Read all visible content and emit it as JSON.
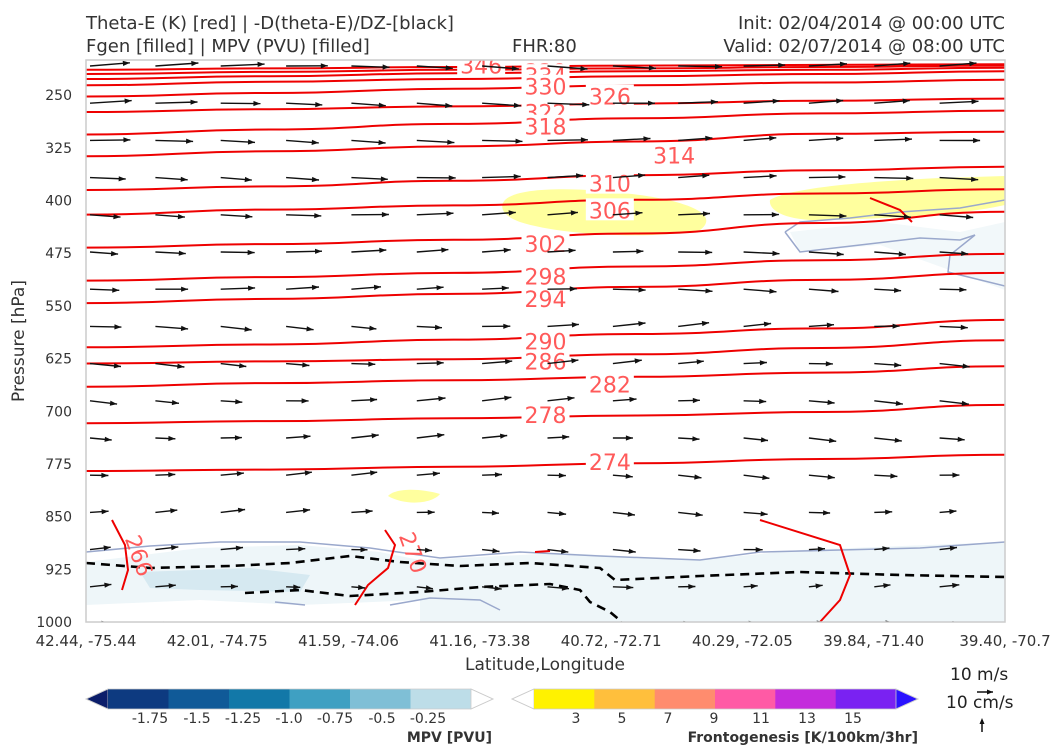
{
  "header": {
    "title_line1": "Theta-E (K) [red] | -D(theta-E)/DZ-[black]",
    "title_line2": "Fgen [filled] | MPV (PVU) [filled]",
    "fhr": "FHR:80",
    "init": "Init: 02/04/2014 @ 00:00 UTC",
    "valid": "Valid: 02/07/2014 @ 08:00 UTC"
  },
  "chart_data": {
    "type": "cross-section",
    "ylabel": "Pressure [hPa]",
    "xlabel": "Latitude,Longitude",
    "ylim": [
      1000,
      200
    ],
    "yticks": [
      250,
      325,
      400,
      475,
      550,
      625,
      700,
      775,
      850,
      925,
      1000
    ],
    "xticks": [
      "42.44, -75.44",
      "42.01, -74.75",
      "41.59, -74.06",
      "41.16, -73.38",
      "40.72, -72.71",
      "40.29, -72.05",
      "39.84, -71.40",
      "39.40, -70.7"
    ],
    "theta_e_color": "#ee0000",
    "theta_e_label_color": "#ff5a5a",
    "theta_e_contours": [
      {
        "level": 342,
        "p": [
          214,
          212,
          210,
          208,
          207,
          206
        ]
      },
      {
        "level": 338,
        "p": [
          220,
          217,
          214,
          212,
          210,
          208
        ]
      },
      {
        "level": 334,
        "p": [
          227,
          223,
          219,
          216,
          214,
          211
        ]
      },
      {
        "level": 330,
        "p": [
          236,
          231,
          227,
          223,
          220,
          216
        ]
      },
      {
        "level": 326,
        "p": [
          252,
          247,
          241,
          236,
          232,
          228
        ]
      },
      {
        "level": 322,
        "p": [
          274,
          270,
          266,
          262,
          258,
          255
        ]
      },
      {
        "level": 318,
        "p": [
          306,
          299,
          291,
          283,
          276,
          272
        ]
      },
      {
        "level": 314,
        "p": [
          337,
          330,
          323,
          316,
          305,
          302
        ]
      },
      {
        "level": 310,
        "p": [
          385,
          380,
          372,
          364,
          357,
          352
        ]
      },
      {
        "level": 306,
        "p": [
          420,
          413,
          407,
          399,
          390,
          384
        ]
      },
      {
        "level": 302,
        "p": [
          467,
          462,
          456,
          447,
          432,
          416
        ]
      },
      {
        "level": 298,
        "p": [
          514,
          509,
          503,
          494,
          485,
          476
        ]
      },
      {
        "level": 294,
        "p": [
          546,
          540,
          533,
          523,
          513,
          503
        ]
      },
      {
        "level": 290,
        "p": [
          609,
          605,
          598,
          590,
          582,
          570
        ]
      },
      {
        "level": 286,
        "p": [
          632,
          629,
          626,
          619,
          610,
          599
        ]
      },
      {
        "level": 282,
        "p": [
          665,
          660,
          656,
          651,
          645,
          636
        ]
      },
      {
        "level": 278,
        "p": [
          717,
          714,
          710,
          706,
          701,
          691
        ]
      },
      {
        "level": 274,
        "p": [
          785,
          783,
          779,
          774,
          768,
          762
        ]
      }
    ],
    "contour_labels": [
      {
        "text": "346",
        "x": 0.43,
        "p": 208
      },
      {
        "text": "342",
        "x": 0.5,
        "p": 211
      },
      {
        "text": "338",
        "x": 0.5,
        "p": 217
      },
      {
        "text": "334",
        "x": 0.5,
        "p": 223
      },
      {
        "text": "330",
        "x": 0.5,
        "p": 238
      },
      {
        "text": "326",
        "x": 0.57,
        "p": 252
      },
      {
        "text": "322",
        "x": 0.5,
        "p": 275
      },
      {
        "text": "318",
        "x": 0.5,
        "p": 295
      },
      {
        "text": "314",
        "x": 0.64,
        "p": 336
      },
      {
        "text": "310",
        "x": 0.57,
        "p": 376
      },
      {
        "text": "306",
        "x": 0.57,
        "p": 414
      },
      {
        "text": "302",
        "x": 0.5,
        "p": 462
      },
      {
        "text": "298",
        "x": 0.5,
        "p": 508
      },
      {
        "text": "294",
        "x": 0.5,
        "p": 540
      },
      {
        "text": "290",
        "x": 0.5,
        "p": 601
      },
      {
        "text": "286",
        "x": 0.5,
        "p": 629
      },
      {
        "text": "282",
        "x": 0.57,
        "p": 662
      },
      {
        "text": "278",
        "x": 0.5,
        "p": 705
      },
      {
        "text": "274",
        "x": 0.57,
        "p": 772
      }
    ],
    "mpv_colorbar": {
      "title": "MPV [PVU]",
      "labels": [
        "-1.75",
        "-1.5",
        "-1.25",
        "-1.0",
        "-0.75",
        "-0.5",
        "-0.25"
      ],
      "colors": [
        "#0b1d6a",
        "#0d3a80",
        "#105a98",
        "#1278a8",
        "#3fa0c2",
        "#7fbfd6",
        "#bddde8",
        "#ffffff"
      ]
    },
    "fgen_colorbar": {
      "title": "Frontogenesis [K/100km/3hr]",
      "labels": [
        "3",
        "5",
        "7",
        "9",
        "11",
        "13",
        "15"
      ],
      "colors": [
        "#ffffff",
        "#fff200",
        "#ffbf3c",
        "#ff8c6e",
        "#ff5aa5",
        "#c42cdc",
        "#7a22f2",
        "#2a12ff"
      ]
    },
    "vector_key": {
      "horizontal": "10 m/s",
      "vertical": "10 cm/s"
    }
  }
}
